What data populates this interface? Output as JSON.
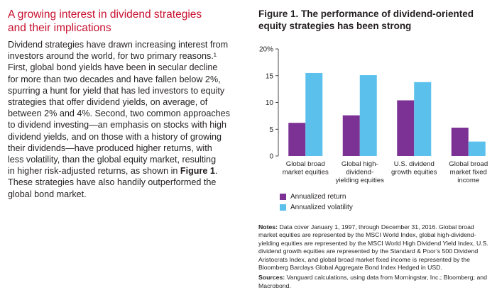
{
  "left": {
    "heading_line1": "A growing interest in dividend strategies",
    "heading_line2": "and their implications",
    "body_lines": [
      "Dividend strategies have drawn increasing interest from",
      "investors around the world, for two primary reasons.¹",
      "First, global bond yields have been in secular decline",
      "for more than two decades and have fallen below 2%,",
      "spurring a hunt for yield that has led investors to equity",
      "strategies that offer dividend yields, on average, of",
      "between 2% and 4%. Second, two common approaches",
      "to dividend investing—an emphasis on stocks with high",
      "dividend yields, and on those with a history of growing",
      "their dividends—have produced higher returns, with",
      "less volatility, than the global equity market, resulting"
    ],
    "body_line12_pre": "in higher risk-adjusted returns, as shown in ",
    "body_line12_bold": "Figure 1",
    "body_line12_post": ".",
    "body_tail_lines": [
      "These strategies have also handily outperformed the",
      "global bond market."
    ]
  },
  "figure": {
    "title_line1": "Figure 1. The performance of dividend-oriented",
    "title_line2": "equity strategies has been strong"
  },
  "chart_data": {
    "type": "bar",
    "title": "Figure 1. The performance of dividend-oriented equity strategies has been strong",
    "categories": [
      [
        "Global broad",
        "market equities"
      ],
      [
        "Global high-",
        "dividend-",
        "yielding equities"
      ],
      [
        "U.S. dividend",
        "growth equities"
      ],
      [
        "Global broad",
        "market fixed",
        "income"
      ]
    ],
    "series": [
      {
        "name": "Annualized return",
        "color": "#7b3294",
        "values": [
          6.2,
          7.6,
          10.4,
          5.3
        ]
      },
      {
        "name": "Annualized volatility",
        "color": "#5bc0eb",
        "values": [
          15.5,
          15.1,
          13.8,
          2.7
        ]
      }
    ],
    "ylim": [
      0,
      20
    ],
    "yticks": [
      0,
      5,
      10,
      15,
      20
    ],
    "ytick_labels": [
      "0",
      "5",
      "10",
      "15",
      "20%"
    ],
    "grid": false,
    "legend": "bottom-left"
  },
  "notes": {
    "notes_label": "Notes:",
    "notes_text": " Data cover January 1, 1997, through December 31, 2016. Global broad market equities are represented by the MSCI World Index, global high-dividend-yielding equities are represented by the MSCI World High Dividend Yield Index, U.S. dividend growth equities are represented by the Standard & Poor’s 500 Dividend Aristocrats Index, and global broad market fixed income is represented by the Bloomberg Barclays Global Aggregate Bond Index Hedged in USD.",
    "sources_label": "Sources:",
    "sources_text": " Vanguard calculations, using data from Morningstar, Inc.; Bloomberg; and Macrobond."
  }
}
